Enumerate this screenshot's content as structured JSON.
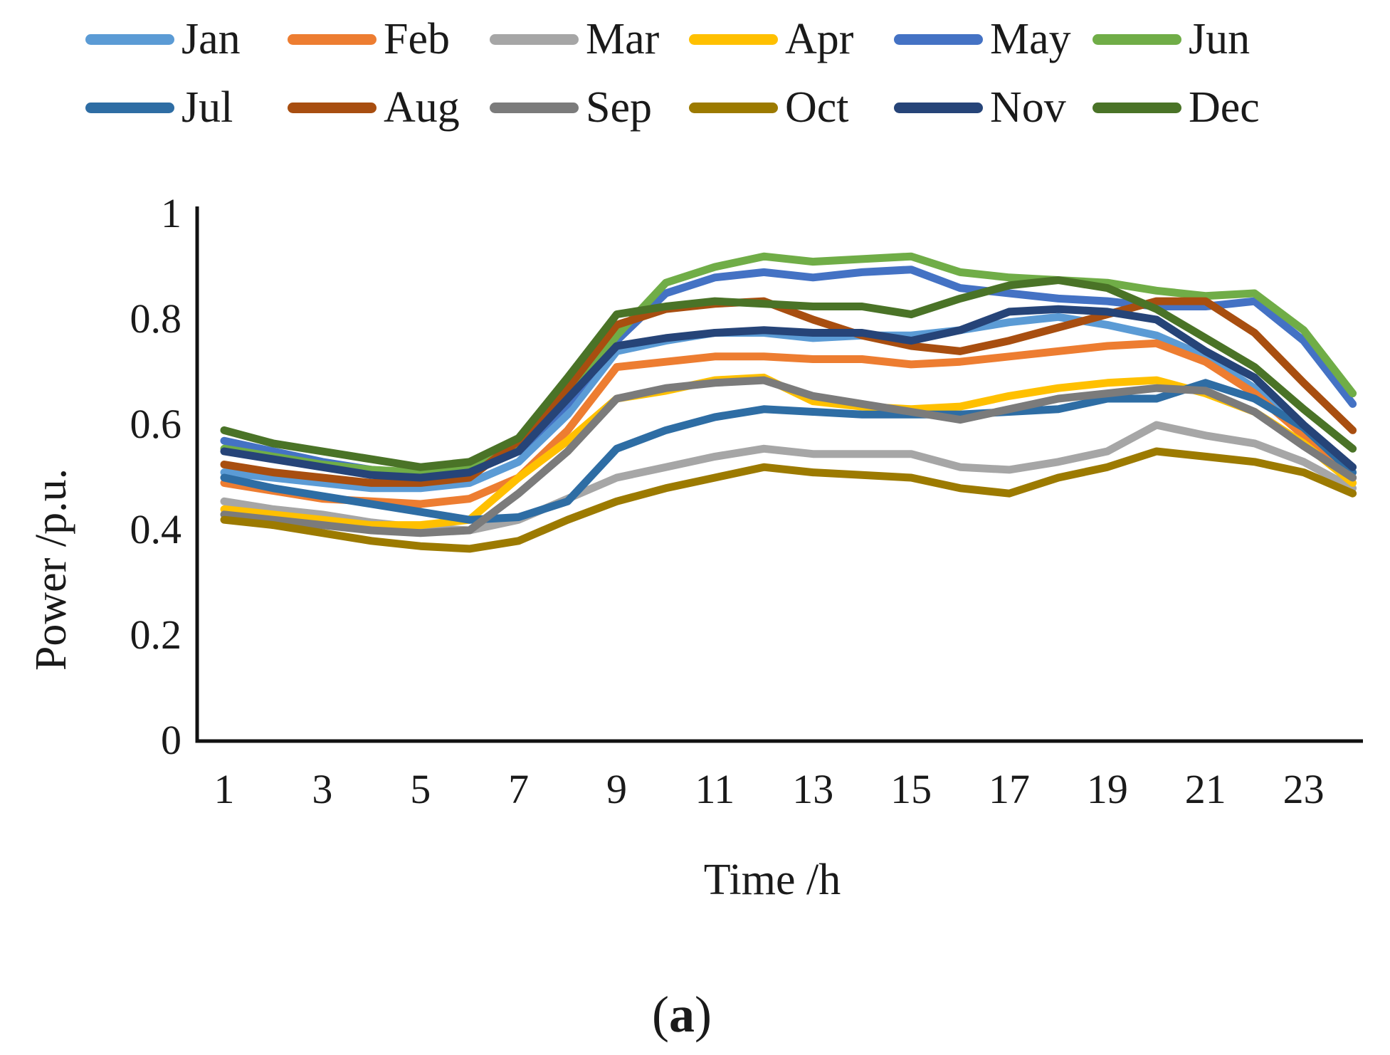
{
  "chart_data": {
    "type": "line",
    "title": "",
    "xlabel": "Time /h",
    "ylabel": "Power /p.u.",
    "caption_open": "(",
    "caption_letter": "a",
    "caption_close": ")",
    "x": [
      1,
      2,
      3,
      4,
      5,
      6,
      7,
      8,
      9,
      10,
      11,
      12,
      13,
      14,
      15,
      16,
      17,
      18,
      19,
      20,
      21,
      22,
      23,
      24
    ],
    "xlim": [
      1,
      24
    ],
    "ylim": [
      0,
      1
    ],
    "grid": false,
    "legend_position": "top",
    "x_tick_labels": [
      "1",
      "3",
      "5",
      "7",
      "9",
      "11",
      "13",
      "15",
      "17",
      "19",
      "21",
      "23"
    ],
    "x_tick_values": [
      1,
      3,
      5,
      7,
      9,
      11,
      13,
      15,
      17,
      19,
      21,
      23
    ],
    "y_tick_labels": [
      "0",
      "0.2",
      "0.4",
      "0.6",
      "0.8",
      "1"
    ],
    "y_tick_values": [
      0,
      0.2,
      0.4,
      0.6,
      0.8,
      1
    ],
    "axis_color": "#111111",
    "series": [
      {
        "name": "Jan",
        "color": "#5B9BD5",
        "values": [
          0.51,
          0.5,
          0.49,
          0.48,
          0.48,
          0.49,
          0.53,
          0.62,
          0.74,
          0.76,
          0.775,
          0.775,
          0.765,
          0.77,
          0.77,
          0.78,
          0.795,
          0.805,
          0.79,
          0.77,
          0.73,
          0.67,
          0.59,
          0.5
        ]
      },
      {
        "name": "Feb",
        "color": "#ED7D31",
        "values": [
          0.49,
          0.475,
          0.46,
          0.455,
          0.45,
          0.46,
          0.5,
          0.59,
          0.71,
          0.72,
          0.73,
          0.73,
          0.725,
          0.725,
          0.715,
          0.72,
          0.73,
          0.74,
          0.75,
          0.755,
          0.72,
          0.66,
          0.58,
          0.5
        ]
      },
      {
        "name": "Mar",
        "color": "#A6A6A6",
        "values": [
          0.455,
          0.44,
          0.43,
          0.415,
          0.405,
          0.4,
          0.42,
          0.46,
          0.5,
          0.52,
          0.54,
          0.555,
          0.545,
          0.545,
          0.545,
          0.52,
          0.515,
          0.53,
          0.55,
          0.6,
          0.58,
          0.565,
          0.53,
          0.48
        ]
      },
      {
        "name": "Apr",
        "color": "#FFC000",
        "values": [
          0.44,
          0.43,
          0.42,
          0.41,
          0.41,
          0.42,
          0.5,
          0.57,
          0.65,
          0.665,
          0.685,
          0.69,
          0.645,
          0.635,
          0.63,
          0.635,
          0.655,
          0.67,
          0.68,
          0.685,
          0.66,
          0.625,
          0.565,
          0.49
        ]
      },
      {
        "name": "May",
        "color": "#4472C4",
        "values": [
          0.57,
          0.55,
          0.53,
          0.515,
          0.505,
          0.51,
          0.55,
          0.64,
          0.76,
          0.85,
          0.88,
          0.89,
          0.88,
          0.89,
          0.895,
          0.86,
          0.85,
          0.84,
          0.835,
          0.825,
          0.825,
          0.835,
          0.76,
          0.64
        ]
      },
      {
        "name": "Jun",
        "color": "#70AD47",
        "values": [
          0.555,
          0.54,
          0.525,
          0.515,
          0.51,
          0.52,
          0.56,
          0.65,
          0.77,
          0.87,
          0.9,
          0.92,
          0.91,
          0.915,
          0.92,
          0.89,
          0.88,
          0.875,
          0.87,
          0.855,
          0.845,
          0.85,
          0.78,
          0.66
        ]
      },
      {
        "name": "Jul",
        "color": "#2E6DA4",
        "values": [
          0.5,
          0.48,
          0.465,
          0.45,
          0.435,
          0.42,
          0.425,
          0.455,
          0.555,
          0.59,
          0.615,
          0.63,
          0.625,
          0.62,
          0.62,
          0.62,
          0.625,
          0.63,
          0.65,
          0.65,
          0.68,
          0.65,
          0.595,
          0.51
        ]
      },
      {
        "name": "Aug",
        "color": "#A84E10",
        "values": [
          0.525,
          0.51,
          0.5,
          0.49,
          0.49,
          0.5,
          0.57,
          0.67,
          0.79,
          0.82,
          0.83,
          0.835,
          0.8,
          0.77,
          0.75,
          0.74,
          0.76,
          0.785,
          0.81,
          0.835,
          0.835,
          0.775,
          0.68,
          0.59
        ]
      },
      {
        "name": "Sep",
        "color": "#7B7B7B",
        "values": [
          0.43,
          0.42,
          0.41,
          0.4,
          0.395,
          0.4,
          0.47,
          0.55,
          0.65,
          0.67,
          0.68,
          0.685,
          0.655,
          0.64,
          0.625,
          0.61,
          0.63,
          0.65,
          0.66,
          0.67,
          0.665,
          0.625,
          0.56,
          0.5
        ]
      },
      {
        "name": "Oct",
        "color": "#9C7A00",
        "values": [
          0.42,
          0.41,
          0.395,
          0.38,
          0.37,
          0.365,
          0.38,
          0.42,
          0.455,
          0.48,
          0.5,
          0.52,
          0.51,
          0.505,
          0.5,
          0.48,
          0.47,
          0.5,
          0.52,
          0.55,
          0.54,
          0.53,
          0.51,
          0.47
        ]
      },
      {
        "name": "Nov",
        "color": "#264478",
        "values": [
          0.55,
          0.535,
          0.52,
          0.505,
          0.5,
          0.51,
          0.55,
          0.65,
          0.75,
          0.765,
          0.775,
          0.78,
          0.775,
          0.775,
          0.76,
          0.78,
          0.815,
          0.82,
          0.815,
          0.8,
          0.74,
          0.69,
          0.6,
          0.52
        ]
      },
      {
        "name": "Dec",
        "color": "#4A7327",
        "values": [
          0.59,
          0.565,
          0.55,
          0.535,
          0.52,
          0.53,
          0.575,
          0.69,
          0.81,
          0.825,
          0.835,
          0.83,
          0.825,
          0.825,
          0.81,
          0.84,
          0.865,
          0.875,
          0.86,
          0.82,
          0.765,
          0.71,
          0.63,
          0.555
        ]
      }
    ]
  }
}
